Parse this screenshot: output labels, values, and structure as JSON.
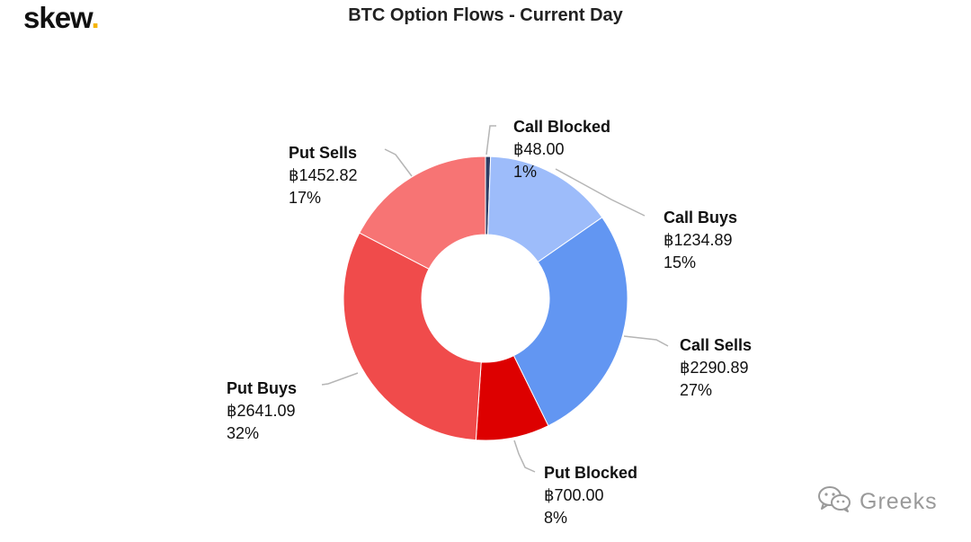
{
  "header": {
    "brand_text": "skew",
    "brand_dot": ".",
    "brand_dot_color": "#f5b400"
  },
  "chart_data": {
    "type": "pie",
    "variant": "donut",
    "title": "BTC Option Flows - Current Day",
    "currency_symbol": "฿",
    "slices": [
      {
        "label": "Call Blocked",
        "value": 48.0,
        "value_text": "฿48.00",
        "percent_text": "1%",
        "color": "#2e3d64"
      },
      {
        "label": "Call Buys",
        "value": 1234.89,
        "value_text": "฿1234.89",
        "percent_text": "15%",
        "color": "#9dbcfa"
      },
      {
        "label": "Call Sells",
        "value": 2290.89,
        "value_text": "฿2290.89",
        "percent_text": "27%",
        "color": "#6296f2"
      },
      {
        "label": "Put Blocked",
        "value": 700.0,
        "value_text": "฿700.00",
        "percent_text": "8%",
        "color": "#dd0000"
      },
      {
        "label": "Put Buys",
        "value": 2641.09,
        "value_text": "฿2641.09",
        "percent_text": "32%",
        "color": "#f04b4b"
      },
      {
        "label": "Put Sells",
        "value": 1452.82,
        "value_text": "฿1452.82",
        "percent_text": "17%",
        "color": "#f77474"
      }
    ]
  },
  "watermark": {
    "text": "Greeks",
    "icon": "wechat-icon"
  }
}
